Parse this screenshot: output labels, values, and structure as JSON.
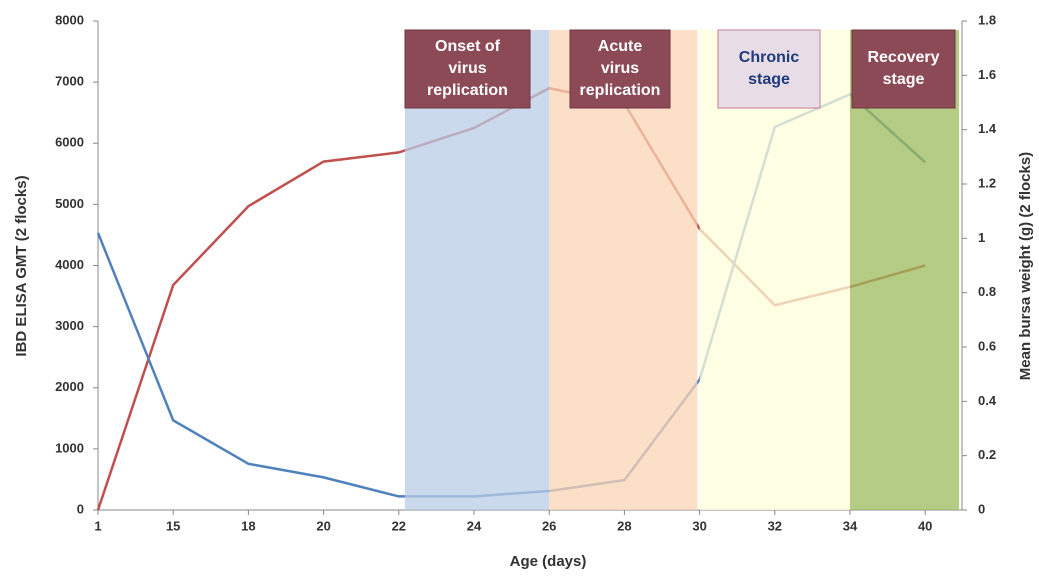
{
  "chart_data": {
    "type": "line",
    "x_label": "Age (days)",
    "y_label": "IBD ELISA GMT (2 flocks)",
    "y2_label": "Mean bursa weight (g) (2 flocks)",
    "categories": [
      "1",
      "15",
      "18",
      "20",
      "22",
      "24",
      "26",
      "28",
      "30",
      "32",
      "34",
      "40"
    ],
    "series": [
      {
        "color": "#c0504d",
        "values": [
          0,
          3680,
          4970,
          5700,
          5850,
          6250,
          6900,
          6650,
          4600,
          3350,
          3650,
          4000
        ]
      },
      {
        "color": "#4f81bd",
        "axis": "y2",
        "values": [
          1.02,
          0.33,
          0.17,
          0.12,
          0.05,
          0.05,
          0.07,
          0.11,
          0.48,
          1.41,
          1.53,
          1.28
        ]
      }
    ],
    "ylim": [
      0,
      8000
    ],
    "yticks": [
      0,
      1000,
      2000,
      3000,
      4000,
      5000,
      6000,
      7000,
      8000
    ],
    "y2lim": [
      0,
      1.8
    ],
    "y2ticks": [
      0,
      0.2,
      0.4,
      0.6,
      0.8,
      1,
      1.2,
      1.4,
      1.6,
      1.8
    ],
    "stages": [
      {
        "lines": [
          "Onset of",
          "virus",
          "replication"
        ],
        "color": "#b8cce4"
      },
      {
        "lines": [
          "Acute",
          "virus",
          "replication"
        ],
        "color": "#fbd4b4"
      },
      {
        "lines": [
          "Chronic",
          "stage"
        ],
        "color": "#ffffd9"
      },
      {
        "lines": [
          "Recovery",
          "stage"
        ],
        "color": "#9bbb59"
      }
    ]
  }
}
